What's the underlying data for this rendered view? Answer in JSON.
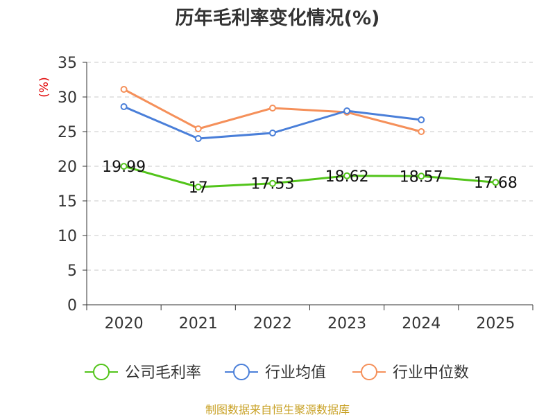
{
  "chart_data": {
    "type": "line",
    "title": "历年毛利率变化情况(%)",
    "ylabel": "(%)",
    "xlabel": "",
    "categories": [
      "2020",
      "2021",
      "2022",
      "2023",
      "2024",
      "2025"
    ],
    "ylim": [
      0,
      35
    ],
    "yticks": [
      0,
      5,
      10,
      15,
      20,
      25,
      30,
      35
    ],
    "grid": true,
    "legend_position": "bottom",
    "series": [
      {
        "name": "公司毛利率",
        "color": "#52c41a",
        "values": [
          19.99,
          17,
          17.53,
          18.62,
          18.57,
          17.68
        ],
        "labels": [
          "19.99",
          "17",
          "17.53",
          "18.62",
          "18.57",
          "17.68"
        ]
      },
      {
        "name": "行业均值",
        "color": "#4a7fd9",
        "values": [
          28.6,
          24.0,
          24.8,
          28.0,
          26.7,
          null
        ]
      },
      {
        "name": "行业中位数",
        "color": "#f5905a",
        "values": [
          31.1,
          25.4,
          28.4,
          27.8,
          25.0,
          null
        ]
      }
    ]
  },
  "source": "制图数据来自恒生聚源数据库"
}
